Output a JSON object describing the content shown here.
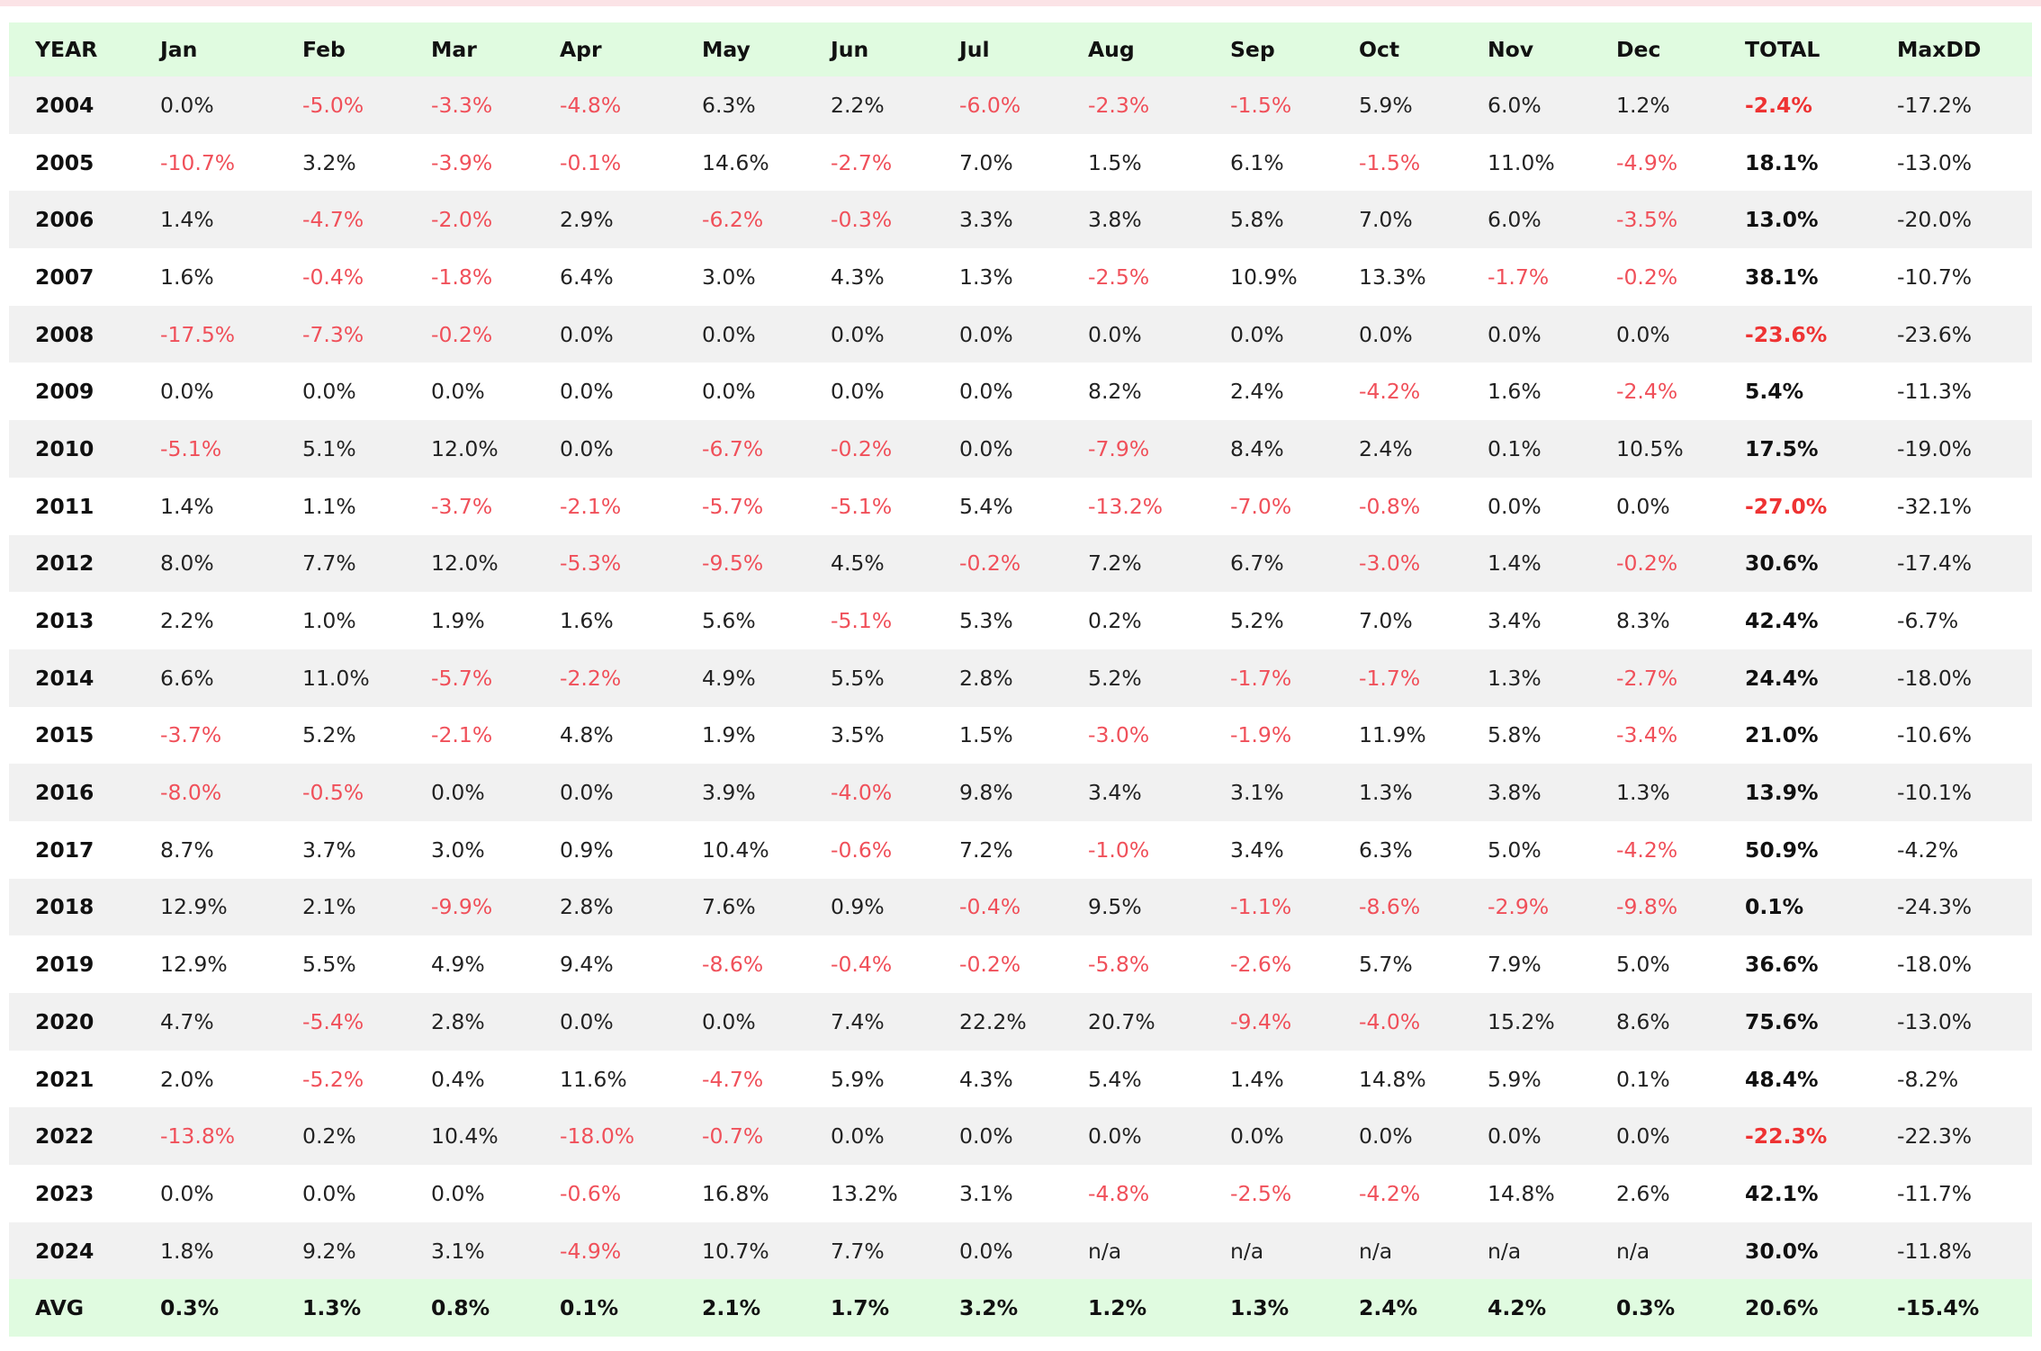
{
  "colors": {
    "header_bg": "#e0fbe0",
    "row_alt_bg": "#f1f1f1",
    "negative_text": "#f0505a",
    "negative_total_text": "#ee3333",
    "top_strip": "#fbe3e6"
  },
  "table": {
    "headers": [
      "YEAR",
      "Jan",
      "Feb",
      "Mar",
      "Apr",
      "May",
      "Jun",
      "Jul",
      "Aug",
      "Sep",
      "Oct",
      "Nov",
      "Dec",
      "TOTAL",
      "MaxDD"
    ],
    "rows": [
      [
        "2004",
        "0.0%",
        "-5.0%",
        "-3.3%",
        "-4.8%",
        "6.3%",
        "2.2%",
        "-6.0%",
        "-2.3%",
        "-1.5%",
        "5.9%",
        "6.0%",
        "1.2%",
        "-2.4%",
        "-17.2%"
      ],
      [
        "2005",
        "-10.7%",
        "3.2%",
        "-3.9%",
        "-0.1%",
        "14.6%",
        "-2.7%",
        "7.0%",
        "1.5%",
        "6.1%",
        "-1.5%",
        "11.0%",
        "-4.9%",
        "18.1%",
        "-13.0%"
      ],
      [
        "2006",
        "1.4%",
        "-4.7%",
        "-2.0%",
        "2.9%",
        "-6.2%",
        "-0.3%",
        "3.3%",
        "3.8%",
        "5.8%",
        "7.0%",
        "6.0%",
        "-3.5%",
        "13.0%",
        "-20.0%"
      ],
      [
        "2007",
        "1.6%",
        "-0.4%",
        "-1.8%",
        "6.4%",
        "3.0%",
        "4.3%",
        "1.3%",
        "-2.5%",
        "10.9%",
        "13.3%",
        "-1.7%",
        "-0.2%",
        "38.1%",
        "-10.7%"
      ],
      [
        "2008",
        "-17.5%",
        "-7.3%",
        "-0.2%",
        "0.0%",
        "0.0%",
        "0.0%",
        "0.0%",
        "0.0%",
        "0.0%",
        "0.0%",
        "0.0%",
        "0.0%",
        "-23.6%",
        "-23.6%"
      ],
      [
        "2009",
        "0.0%",
        "0.0%",
        "0.0%",
        "0.0%",
        "0.0%",
        "0.0%",
        "0.0%",
        "8.2%",
        "2.4%",
        "-4.2%",
        "1.6%",
        "-2.4%",
        "5.4%",
        "-11.3%"
      ],
      [
        "2010",
        "-5.1%",
        "5.1%",
        "12.0%",
        "0.0%",
        "-6.7%",
        "-0.2%",
        "0.0%",
        "-7.9%",
        "8.4%",
        "2.4%",
        "0.1%",
        "10.5%",
        "17.5%",
        "-19.0%"
      ],
      [
        "2011",
        "1.4%",
        "1.1%",
        "-3.7%",
        "-2.1%",
        "-5.7%",
        "-5.1%",
        "5.4%",
        "-13.2%",
        "-7.0%",
        "-0.8%",
        "0.0%",
        "0.0%",
        "-27.0%",
        "-32.1%"
      ],
      [
        "2012",
        "8.0%",
        "7.7%",
        "12.0%",
        "-5.3%",
        "-9.5%",
        "4.5%",
        "-0.2%",
        "7.2%",
        "6.7%",
        "-3.0%",
        "1.4%",
        "-0.2%",
        "30.6%",
        "-17.4%"
      ],
      [
        "2013",
        "2.2%",
        "1.0%",
        "1.9%",
        "1.6%",
        "5.6%",
        "-5.1%",
        "5.3%",
        "0.2%",
        "5.2%",
        "7.0%",
        "3.4%",
        "8.3%",
        "42.4%",
        "-6.7%"
      ],
      [
        "2014",
        "6.6%",
        "11.0%",
        "-5.7%",
        "-2.2%",
        "4.9%",
        "5.5%",
        "2.8%",
        "5.2%",
        "-1.7%",
        "-1.7%",
        "1.3%",
        "-2.7%",
        "24.4%",
        "-18.0%"
      ],
      [
        "2015",
        "-3.7%",
        "5.2%",
        "-2.1%",
        "4.8%",
        "1.9%",
        "3.5%",
        "1.5%",
        "-3.0%",
        "-1.9%",
        "11.9%",
        "5.8%",
        "-3.4%",
        "21.0%",
        "-10.6%"
      ],
      [
        "2016",
        "-8.0%",
        "-0.5%",
        "0.0%",
        "0.0%",
        "3.9%",
        "-4.0%",
        "9.8%",
        "3.4%",
        "3.1%",
        "1.3%",
        "3.8%",
        "1.3%",
        "13.9%",
        "-10.1%"
      ],
      [
        "2017",
        "8.7%",
        "3.7%",
        "3.0%",
        "0.9%",
        "10.4%",
        "-0.6%",
        "7.2%",
        "-1.0%",
        "3.4%",
        "6.3%",
        "5.0%",
        "-4.2%",
        "50.9%",
        "-4.2%"
      ],
      [
        "2018",
        "12.9%",
        "2.1%",
        "-9.9%",
        "2.8%",
        "7.6%",
        "0.9%",
        "-0.4%",
        "9.5%",
        "-1.1%",
        "-8.6%",
        "-2.9%",
        "-9.8%",
        "0.1%",
        "-24.3%"
      ],
      [
        "2019",
        "12.9%",
        "5.5%",
        "4.9%",
        "9.4%",
        "-8.6%",
        "-0.4%",
        "-0.2%",
        "-5.8%",
        "-2.6%",
        "5.7%",
        "7.9%",
        "5.0%",
        "36.6%",
        "-18.0%"
      ],
      [
        "2020",
        "4.7%",
        "-5.4%",
        "2.8%",
        "0.0%",
        "0.0%",
        "7.4%",
        "22.2%",
        "20.7%",
        "-9.4%",
        "-4.0%",
        "15.2%",
        "8.6%",
        "75.6%",
        "-13.0%"
      ],
      [
        "2021",
        "2.0%",
        "-5.2%",
        "0.4%",
        "11.6%",
        "-4.7%",
        "5.9%",
        "4.3%",
        "5.4%",
        "1.4%",
        "14.8%",
        "5.9%",
        "0.1%",
        "48.4%",
        "-8.2%"
      ],
      [
        "2022",
        "-13.8%",
        "0.2%",
        "10.4%",
        "-18.0%",
        "-0.7%",
        "0.0%",
        "0.0%",
        "0.0%",
        "0.0%",
        "0.0%",
        "0.0%",
        "0.0%",
        "-22.3%",
        "-22.3%"
      ],
      [
        "2023",
        "0.0%",
        "0.0%",
        "0.0%",
        "-0.6%",
        "16.8%",
        "13.2%",
        "3.1%",
        "-4.8%",
        "-2.5%",
        "-4.2%",
        "14.8%",
        "2.6%",
        "42.1%",
        "-11.7%"
      ],
      [
        "2024",
        "1.8%",
        "9.2%",
        "3.1%",
        "-4.9%",
        "10.7%",
        "7.7%",
        "0.0%",
        "n/a",
        "n/a",
        "n/a",
        "n/a",
        "n/a",
        "30.0%",
        "-11.8%"
      ]
    ],
    "footer": [
      "AVG",
      "0.3%",
      "1.3%",
      "0.8%",
      "0.1%",
      "2.1%",
      "1.7%",
      "3.2%",
      "1.2%",
      "1.3%",
      "2.4%",
      "4.2%",
      "0.3%",
      "20.6%",
      "-15.4%"
    ]
  }
}
